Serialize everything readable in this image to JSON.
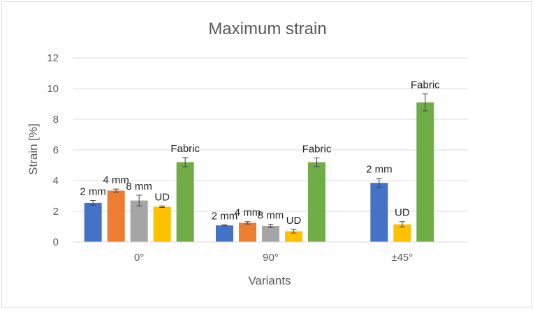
{
  "chart_data": {
    "type": "bar",
    "title": "Maximum strain",
    "xlabel": "Variants",
    "ylabel": "Strain [%]",
    "ylim": [
      0,
      12
    ],
    "yticks": [
      "0",
      "2",
      "4",
      "6",
      "8",
      "10",
      "12"
    ],
    "grid": true,
    "legend": "none",
    "colors": {
      "2 mm": "#4472C4",
      "4 mm": "#ED7D31",
      "8 mm": "#A5A5A5",
      "UD": "#FFC000",
      "Fabric": "#70AD47"
    },
    "groups": [
      {
        "category": "0°",
        "bars": [
          {
            "label": "2 mm",
            "value": 2.55,
            "error": 0.15
          },
          {
            "label": "4 mm",
            "value": 3.35,
            "error": 0.1
          },
          {
            "label": "8 mm",
            "value": 2.7,
            "error": 0.35
          },
          {
            "label": "UD",
            "value": 2.3,
            "error": 0.05
          },
          {
            "label": "Fabric",
            "value": 5.2,
            "error": 0.3
          }
        ]
      },
      {
        "category": "90°",
        "bars": [
          {
            "label": "2 mm",
            "value": 1.08,
            "error": 0.03
          },
          {
            "label": "4 mm",
            "value": 1.25,
            "error": 0.08
          },
          {
            "label": "8 mm",
            "value": 1.05,
            "error": 0.1
          },
          {
            "label": "UD",
            "value": 0.7,
            "error": 0.12
          },
          {
            "label": "Fabric",
            "value": 5.2,
            "error": 0.28
          }
        ]
      },
      {
        "category": "±45°",
        "bars": [
          {
            "label": "2 mm",
            "value": 3.85,
            "error": 0.3
          },
          {
            "label": "UD",
            "value": 1.15,
            "error": 0.18
          },
          {
            "label": "Fabric",
            "value": 9.1,
            "error": 0.55
          }
        ]
      }
    ]
  }
}
